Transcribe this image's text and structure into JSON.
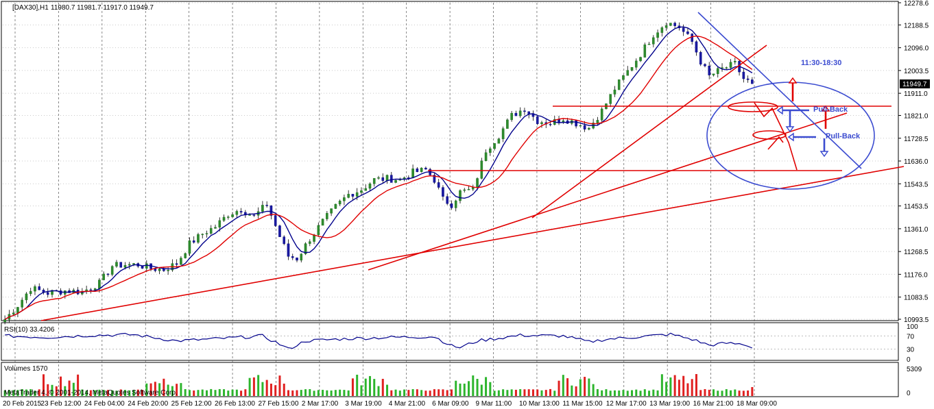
{
  "header": {
    "symbol": "[DAX30],H1",
    "ohlc": "11980.7 11981.7 11917.0 11949.7"
  },
  "current_price_label": "11949.7",
  "watermark": "MetaTrader 4, © 2001-2014, MetaQuotes Software Corp.",
  "annotations": {
    "time_window": "11:30-18:30",
    "pullback_1": "Pull-Back",
    "pullback_2": "Pull-Back"
  },
  "chart_data": [
    {
      "type": "candlestick",
      "title": "[DAX30],H1",
      "price_ticks": [
        "12278.6",
        "12188.5",
        "12096.0",
        "12003.5",
        "11911.0",
        "11821.0",
        "11728.5",
        "11636.0",
        "11543.5",
        "11453.5",
        "11361.0",
        "11268.5",
        "11176.0",
        "11083.5",
        "10993.5"
      ],
      "x_tick_labels": [
        "20 Feb 2015",
        "23 Feb 12:00",
        "24 Feb 04:00",
        "24 Feb 20:00",
        "25 Feb 12:00",
        "26 Feb 13:00",
        "27 Feb 15:00",
        "2 Mar 17:00",
        "3 Mar 19:00",
        "4 Mar 21:00",
        "6 Mar 09:00",
        "9 Mar 11:00",
        "10 Mar 13:00",
        "11 Mar 15:00",
        "12 Mar 17:00",
        "13 Mar 19:00",
        "16 Mar 21:00",
        "18 Mar 09:00"
      ],
      "ylim": [
        10993.5,
        12278.6
      ],
      "approx_close_path": [
        [
          0,
          10993
        ],
        [
          3,
          11050
        ],
        [
          6,
          11120
        ],
        [
          10,
          11100
        ],
        [
          14,
          11110
        ],
        [
          18,
          11105
        ],
        [
          22,
          11140
        ],
        [
          25,
          11210
        ],
        [
          28,
          11215
        ],
        [
          31,
          11215
        ],
        [
          34,
          11200
        ],
        [
          37,
          11195
        ],
        [
          40,
          11220
        ],
        [
          43,
          11300
        ],
        [
          46,
          11340
        ],
        [
          49,
          11370
        ],
        [
          52,
          11420
        ],
        [
          55,
          11440
        ],
        [
          58,
          11410
        ],
        [
          61,
          11460
        ],
        [
          64,
          11330
        ],
        [
          66,
          11250
        ],
        [
          68,
          11240
        ],
        [
          71,
          11320
        ],
        [
          74,
          11390
        ],
        [
          77,
          11450
        ],
        [
          80,
          11500
        ],
        [
          83,
          11520
        ],
        [
          86,
          11560
        ],
        [
          89,
          11565
        ],
        [
          92,
          11560
        ],
        [
          95,
          11590
        ],
        [
          98,
          11600
        ],
        [
          100,
          11560
        ],
        [
          102,
          11480
        ],
        [
          104,
          11460
        ],
        [
          106,
          11510
        ],
        [
          109,
          11520
        ],
        [
          112,
          11680
        ],
        [
          115,
          11740
        ],
        [
          118,
          11820
        ],
        [
          121,
          11850
        ],
        [
          124,
          11800
        ],
        [
          127,
          11790
        ],
        [
          130,
          11810
        ],
        [
          133,
          11790
        ],
        [
          136,
          11770
        ],
        [
          139,
          11840
        ],
        [
          142,
          11930
        ],
        [
          145,
          12000
        ],
        [
          148,
          12070
        ],
        [
          151,
          12150
        ],
        [
          154,
          12200
        ],
        [
          157,
          12180
        ],
        [
          160,
          12120
        ],
        [
          162,
          12040
        ],
        [
          164,
          11980
        ],
        [
          167,
          12010
        ],
        [
          170,
          12030
        ],
        [
          172,
          11970
        ],
        [
          174,
          11949.7
        ]
      ],
      "moving_averages": [
        {
          "name": "",
          "color": "#00008b"
        },
        {
          "name": "",
          "color": "#e00000"
        }
      ]
    },
    {
      "type": "line",
      "title": "RSI(10) 33.4206",
      "y_ticks": [
        "100",
        "70",
        "30",
        "0"
      ],
      "ylim": [
        0,
        100
      ],
      "approx_values": [
        [
          0,
          70
        ],
        [
          10,
          66
        ],
        [
          20,
          72
        ],
        [
          30,
          74
        ],
        [
          40,
          55
        ],
        [
          50,
          62
        ],
        [
          60,
          70
        ],
        [
          64,
          45
        ],
        [
          66,
          30
        ],
        [
          70,
          55
        ],
        [
          80,
          62
        ],
        [
          90,
          66
        ],
        [
          100,
          68
        ],
        [
          104,
          40
        ],
        [
          106,
          35
        ],
        [
          110,
          55
        ],
        [
          120,
          72
        ],
        [
          130,
          70
        ],
        [
          136,
          52
        ],
        [
          140,
          60
        ],
        [
          150,
          70
        ],
        [
          155,
          75
        ],
        [
          160,
          60
        ],
        [
          164,
          42
        ],
        [
          168,
          48
        ],
        [
          172,
          45
        ],
        [
          174,
          33.4206
        ]
      ]
    },
    {
      "type": "bar",
      "title": "Volumes 1570",
      "y_ticks": [
        "5309",
        "0"
      ],
      "ylim": [
        0,
        5309
      ],
      "last_value": 1570
    }
  ]
}
